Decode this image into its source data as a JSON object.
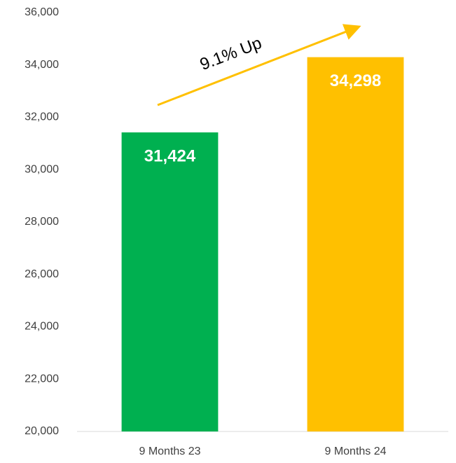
{
  "chart_data": {
    "type": "bar",
    "categories": [
      "9 Months 23",
      "9 Months 24"
    ],
    "values": [
      31424,
      34298
    ],
    "value_labels": [
      "31,424",
      "34,298"
    ],
    "colors": [
      "#00b050",
      "#ffc000"
    ],
    "annotation": "9.1% Up",
    "ylim": [
      20000,
      36000
    ],
    "yticks": [
      {
        "value": 20000,
        "label": "20,000"
      },
      {
        "value": 22000,
        "label": "22,000"
      },
      {
        "value": 24000,
        "label": "24,000"
      },
      {
        "value": 26000,
        "label": "26,000"
      },
      {
        "value": 28000,
        "label": "28,000"
      },
      {
        "value": 30000,
        "label": "30,000"
      },
      {
        "value": 32000,
        "label": "32,000"
      },
      {
        "value": 34000,
        "label": "34,000"
      },
      {
        "value": 36000,
        "label": "36,000"
      }
    ],
    "grid": false
  }
}
